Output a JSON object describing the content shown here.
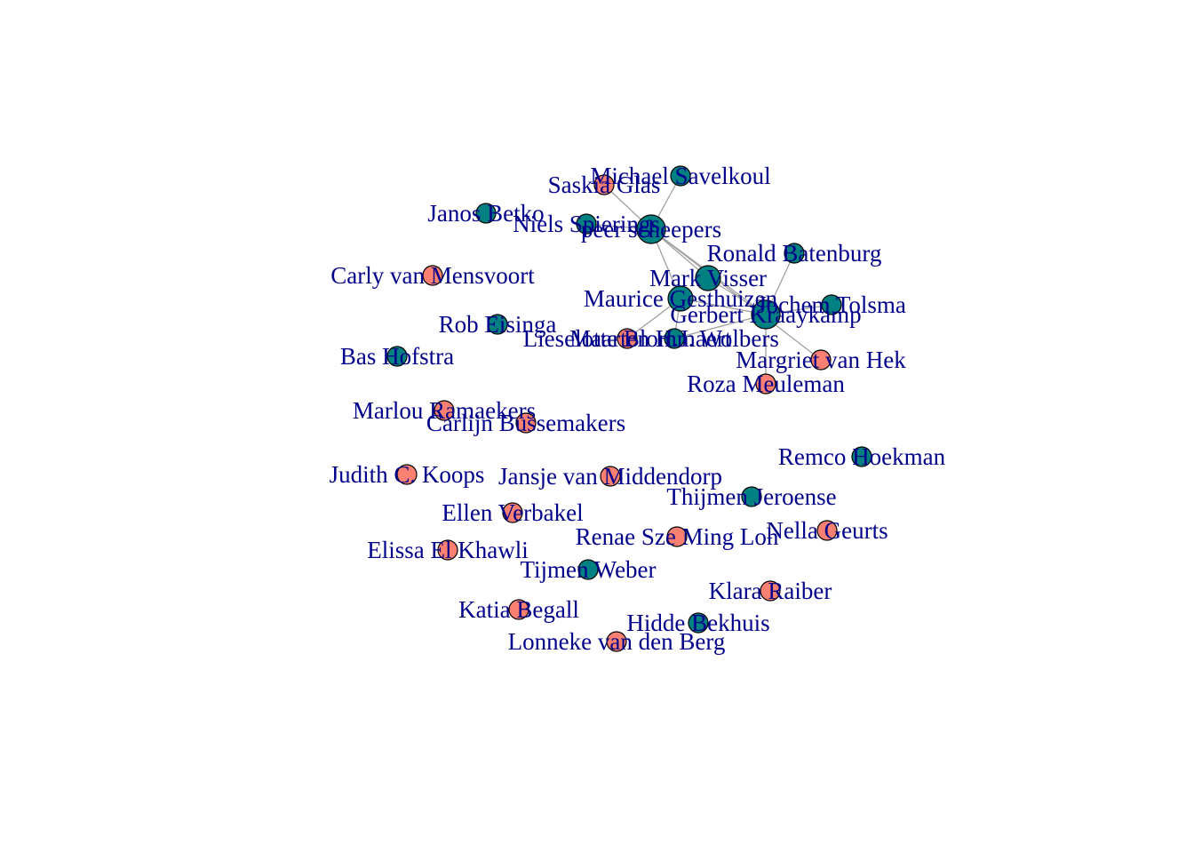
{
  "colors": {
    "teal": "#008080",
    "salmon": "#FA8072",
    "label": "#00008B",
    "edge": "#A0A0A0",
    "outline": "#000000"
  },
  "nodes": [
    {
      "id": "savelkoul",
      "label": "Michael Savelkoul",
      "color": "teal"
    },
    {
      "id": "glas",
      "label": "Saskia Glas",
      "color": "salmon"
    },
    {
      "id": "betko",
      "label": "Janos Betko",
      "color": "teal"
    },
    {
      "id": "spierings",
      "label": "Niels Spierings",
      "color": "teal"
    },
    {
      "id": "scheepers",
      "label": "peer scheepers",
      "color": "teal"
    },
    {
      "id": "batenburg",
      "label": "Ronald Batenburg",
      "color": "teal"
    },
    {
      "id": "mensvoort",
      "label": "Carly van Mensvoort",
      "color": "salmon"
    },
    {
      "id": "visser",
      "label": "Mark Visser",
      "color": "teal"
    },
    {
      "id": "gesthuizen",
      "label": "Maurice Gesthuizen",
      "color": "teal"
    },
    {
      "id": "tolsma",
      "label": "Jochem Tolsma",
      "color": "teal"
    },
    {
      "id": "kraaykamp",
      "label": "Gerbert Kraaykamp",
      "color": "teal"
    },
    {
      "id": "elsinga",
      "label": "Rob Eisinga",
      "color": "teal"
    },
    {
      "id": "bolhaar",
      "label": "Lieselotte Blommaert",
      "color": "salmon"
    },
    {
      "id": "wolbers",
      "label": "Maarten H.J. Wolbers",
      "color": "teal"
    },
    {
      "id": "hofstra",
      "label": "Bas Hofstra",
      "color": "teal"
    },
    {
      "id": "hek",
      "label": "Margriet van Hek",
      "color": "salmon"
    },
    {
      "id": "meuleman",
      "label": "Roza Meuleman",
      "color": "salmon"
    },
    {
      "id": "ramaekers",
      "label": "Marlou Ramaekers",
      "color": "salmon"
    },
    {
      "id": "bussemakers",
      "label": "Carlijn Bussemakers",
      "color": "salmon"
    },
    {
      "id": "hoekman",
      "label": "Remco Hoekman",
      "color": "teal"
    },
    {
      "id": "koops",
      "label": "Judith C. Koops",
      "color": "salmon"
    },
    {
      "id": "middendorp",
      "label": "Jansje van Middendorp",
      "color": "salmon"
    },
    {
      "id": "jeroense",
      "label": "Thijmen Jeroense",
      "color": "teal"
    },
    {
      "id": "verbakel",
      "label": "Ellen Verbakel",
      "color": "salmon"
    },
    {
      "id": "geurts",
      "label": "Nella Geurts",
      "color": "salmon"
    },
    {
      "id": "loh",
      "label": "Renae Sze Ming Loh",
      "color": "salmon"
    },
    {
      "id": "khawli",
      "label": "Elissa El Khawli",
      "color": "salmon"
    },
    {
      "id": "weber",
      "label": "Tijmen Weber",
      "color": "teal"
    },
    {
      "id": "raiber",
      "label": "Klara Raiber",
      "color": "salmon"
    },
    {
      "id": "begall",
      "label": "Katia Begall",
      "color": "salmon"
    },
    {
      "id": "bekhuis",
      "label": "Hidde Bekhuis",
      "color": "teal"
    },
    {
      "id": "berg",
      "label": "Lonneke van den Berg",
      "color": "salmon"
    }
  ],
  "edges": [
    [
      "glas",
      "scheepers"
    ],
    [
      "savelkoul",
      "scheepers"
    ],
    [
      "spierings",
      "scheepers"
    ],
    [
      "scheepers",
      "visser"
    ],
    [
      "scheepers",
      "gesthuizen"
    ],
    [
      "scheepers",
      "kraaykamp"
    ],
    [
      "scheepers",
      "hek"
    ],
    [
      "visser",
      "kraaykamp"
    ],
    [
      "gesthuizen",
      "kraaykamp"
    ],
    [
      "gesthuizen",
      "bolhaar"
    ],
    [
      "gesthuizen",
      "wolbers"
    ],
    [
      "kraaykamp",
      "batenburg"
    ],
    [
      "kraaykamp",
      "tolsma"
    ],
    [
      "kraaykamp",
      "wolbers"
    ],
    [
      "kraaykamp",
      "meuleman"
    ]
  ]
}
